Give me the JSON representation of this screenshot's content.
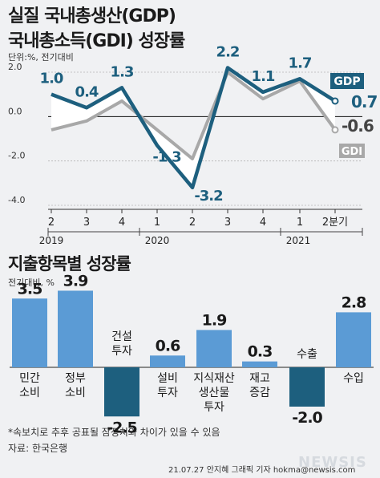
{
  "header": {
    "title_line1": "실질 국내총생산(GDP)",
    "title_line2": "국내총소득(GDI) 성장률",
    "unit": "단위:%, 전기대비"
  },
  "section2": {
    "title": "지출항목별 성장률",
    "unit": "전기대비, %"
  },
  "footer": {
    "note": "*속보치로 추후 공표될 잠정치와 차이가 있을 수 있음",
    "source": "자료: 한국은행",
    "credit": "21.07.27 안지혜 그래픽 기자 hokma@newsis.com",
    "watermark": "NEWSIS"
  },
  "colors": {
    "gdp": "#1d5f7e",
    "gdi": "#a8a8a8",
    "bar": "#5b9bd5",
    "bar_neg": "#1d5f7e",
    "label_neg": "#1a1a1a"
  },
  "chart_data": [
    {
      "type": "line",
      "categories": [
        "2",
        "3",
        "4",
        "1",
        "2",
        "3",
        "4",
        "1",
        "2분기"
      ],
      "year_labels": [
        "2019",
        "2020",
        "2021"
      ],
      "ylim": [
        -4.0,
        2.0
      ],
      "yticks": [
        "2.0",
        "0.0",
        "-2.0",
        "-4.0"
      ],
      "grid": true,
      "series": [
        {
          "name": "GDP",
          "values": [
            1.0,
            0.4,
            1.3,
            -1.3,
            -3.2,
            2.2,
            1.1,
            1.7,
            0.7
          ],
          "labels": [
            "1.0",
            "0.4",
            "1.3",
            "-1.3",
            "-3.2",
            "2.2",
            "1.1",
            "1.7",
            "0.7"
          ]
        },
        {
          "name": "GDI",
          "values": [
            -0.6,
            -0.2,
            0.7,
            -0.6,
            -1.9,
            2.0,
            0.8,
            1.6,
            -0.6
          ],
          "labels": [
            "",
            "",
            "",
            "",
            "",
            "",
            "",
            "",
            "-0.6"
          ]
        }
      ]
    },
    {
      "type": "bar",
      "categories": [
        "민간 소비",
        "정부 소비",
        "건설 투자",
        "설비 투자",
        "지식재산 생산물 투자",
        "재고 증감",
        "수출",
        "수입"
      ],
      "category_lines": [
        [
          "민간",
          "소비"
        ],
        [
          "정부",
          "소비"
        ],
        [
          "건설",
          "투자"
        ],
        [
          "설비",
          "투자"
        ],
        [
          "지식재산",
          "생산물",
          "투자"
        ],
        [
          "재고",
          "증감"
        ],
        [
          "수출"
        ],
        [
          "수입"
        ]
      ],
      "values": [
        3.5,
        3.9,
        -2.5,
        0.6,
        1.9,
        0.3,
        -2.0,
        2.8
      ],
      "value_labels": [
        "3.5",
        "3.9",
        "-2.5",
        "0.6",
        "1.9",
        "0.3",
        "-2.0",
        "2.8"
      ]
    }
  ]
}
